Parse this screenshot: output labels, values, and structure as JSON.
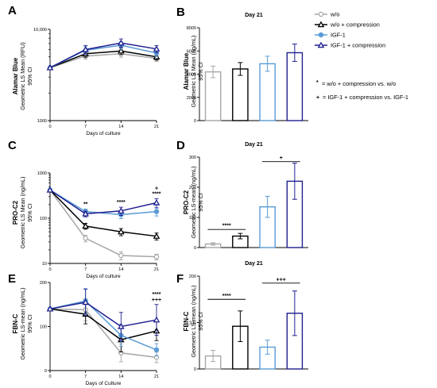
{
  "colors": {
    "wo": "#a6a6a6",
    "wo_compression": "#000000",
    "igf1": "#5b9bd5",
    "igf1_compression": "#1f1f8f"
  },
  "legend": {
    "items": [
      {
        "label": "w/o",
        "marker": "circle",
        "color": "#a6a6a6"
      },
      {
        "label": "w/o + compression",
        "marker": "triangle",
        "color": "#000000"
      },
      {
        "label": "IGF-1",
        "marker": "circle",
        "color": "#5b9bd5"
      },
      {
        "label": "IGF-1 + compression",
        "marker": "triangle",
        "color": "#1f1f8f"
      }
    ],
    "note1_symbol": "*",
    "note1_text": "= w/o + compression vs. w/o",
    "note2_symbol": "+",
    "note2_text": "= IGF-1 + compression vs. IGF-1"
  },
  "chart_data": [
    {
      "panel": "A",
      "type": "line",
      "ylabel": "Alamar Blue",
      "ylabel2": "Geometric LS Mean (RFU)",
      "ylabel3": "95% CI",
      "xlabel": "Days of culture",
      "yscale": "log",
      "ylim": [
        1000,
        10000
      ],
      "yticks": [
        1000,
        10000
      ],
      "ytick_labels": [
        "1000",
        "10,000"
      ],
      "x": [
        0,
        7,
        14,
        21
      ],
      "xticks": [
        0,
        7,
        14,
        21
      ],
      "series": [
        {
          "name": "w/o",
          "values": [
            3800,
            5100,
            5400,
            4800
          ],
          "err": [
            0,
            400,
            450,
            350
          ]
        },
        {
          "name": "w/o + compression",
          "values": [
            3800,
            5400,
            5800,
            5000
          ],
          "err": [
            0,
            450,
            500,
            400
          ]
        },
        {
          "name": "IGF-1",
          "values": [
            3800,
            5900,
            6700,
            5500
          ],
          "err": [
            0,
            550,
            650,
            450
          ]
        },
        {
          "name": "IGF-1 + compression",
          "values": [
            3800,
            6000,
            7100,
            6100
          ],
          "err": [
            0,
            650,
            750,
            550
          ]
        }
      ],
      "annotations": []
    },
    {
      "panel": "B",
      "type": "bar",
      "title": "Day 21",
      "ylabel": "Alamar Blue",
      "ylabel2": "Geometric LS Mean (ng/mL)",
      "ylabel3": "95% CI",
      "ylim": [
        0,
        8000
      ],
      "yticks": [
        0,
        2000,
        4000,
        6000,
        8000
      ],
      "ytick_labels": [
        "0",
        "2000",
        "4000",
        "6000",
        "8000"
      ],
      "categories": [
        "w/o",
        "w/o + compression",
        "IGF-1",
        "IGF-1 + compression"
      ],
      "values": [
        4200,
        4450,
        4900,
        5850
      ],
      "err": [
        500,
        550,
        650,
        750
      ],
      "annotations": []
    },
    {
      "panel": "C",
      "type": "line",
      "ylabel": "PRO-C2",
      "ylabel2": "Geometric LS Mean (ng/mL)",
      "ylabel3": "95% CI",
      "xlabel": "Days of culture",
      "yscale": "log",
      "ylim": [
        10,
        1000
      ],
      "yticks": [
        10,
        100,
        1000
      ],
      "ytick_labels": [
        "10",
        "100",
        "1000"
      ],
      "x": [
        0,
        7,
        14,
        21
      ],
      "xticks": [
        0,
        7,
        14,
        21
      ],
      "series": [
        {
          "name": "w/o",
          "values": [
            420,
            36,
            15,
            14
          ],
          "err": [
            0,
            6,
            3,
            2
          ]
        },
        {
          "name": "w/o + compression",
          "values": [
            420,
            67,
            50,
            40
          ],
          "err": [
            0,
            10,
            9,
            7
          ]
        },
        {
          "name": "IGF-1",
          "values": [
            420,
            140,
            120,
            140
          ],
          "err": [
            0,
            20,
            22,
            28
          ]
        },
        {
          "name": "IGF-1 + compression",
          "values": [
            420,
            125,
            145,
            220
          ],
          "err": [
            0,
            18,
            30,
            50
          ]
        }
      ],
      "annotations": [
        {
          "x": 7,
          "text": "**"
        },
        {
          "x": 14,
          "text": "****"
        },
        {
          "x": 21,
          "text": "****"
        },
        {
          "x": 21,
          "text": "+"
        }
      ]
    },
    {
      "panel": "D",
      "type": "bar",
      "title": "Day 21",
      "ylabel": "PRO-C2",
      "ylabel2": "Geometric LS-mean (ng/mL)",
      "ylabel3": "95% CI",
      "ylim": [
        0,
        300
      ],
      "yticks": [
        0,
        100,
        200,
        300
      ],
      "ytick_labels": [
        "0",
        "100",
        "200",
        "300"
      ],
      "categories": [
        "w/o",
        "w/o + compression",
        "IGF-1",
        "IGF-1 + compression"
      ],
      "values": [
        12,
        38,
        135,
        220
      ],
      "err": [
        4,
        9,
        35,
        60
      ],
      "annotations": [
        {
          "between": [
            0,
            1
          ],
          "level": 60,
          "text": "****"
        },
        {
          "between": [
            2,
            3
          ],
          "level": 285,
          "text": "+"
        }
      ]
    },
    {
      "panel": "E",
      "type": "line",
      "ylabel": "FBN-C",
      "ylabel2": "Geometric LS-mean (ng/mL)",
      "ylabel3": "95% CI",
      "xlabel": "Days of Culture",
      "yscale": "linear",
      "ylim": [
        0,
        200
      ],
      "yticks": [
        0,
        100,
        200
      ],
      "ytick_labels": [
        "0",
        "100",
        "200"
      ],
      "x": [
        0,
        7,
        14,
        21
      ],
      "xticks": [
        0,
        7,
        14,
        21
      ],
      "series": [
        {
          "name": "w/o",
          "values": [
            140,
            138,
            40,
            30
          ],
          "err": [
            0,
            25,
            20,
            12
          ]
        },
        {
          "name": "w/o + compression",
          "values": [
            140,
            128,
            70,
            90
          ],
          "err": [
            0,
            22,
            28,
            22
          ]
        },
        {
          "name": "IGF-1",
          "values": [
            140,
            158,
            80,
            47
          ],
          "err": [
            0,
            28,
            25,
            14
          ]
        },
        {
          "name": "IGF-1 + compression",
          "values": [
            140,
            155,
            100,
            115
          ],
          "err": [
            0,
            30,
            32,
            35
          ]
        }
      ],
      "annotations": [
        {
          "x": 21,
          "text": "+++"
        },
        {
          "x": 21,
          "text": "****"
        }
      ]
    },
    {
      "panel": "F",
      "type": "bar",
      "title": "Day 21",
      "ylabel": "FBN-C",
      "ylabel2": "Geometric LS-mean (ng/mL)",
      "ylabel3": "95% CI",
      "ylim": [
        0,
        200
      ],
      "yticks": [
        0,
        100,
        200
      ],
      "ytick_labels": [
        "0",
        "100",
        "200"
      ],
      "categories": [
        "w/o",
        "w/o + compression",
        "IGF-1",
        "IGF-1 + compression"
      ],
      "values": [
        28,
        92,
        47,
        120
      ],
      "err": [
        12,
        33,
        15,
        48
      ],
      "annotations": [
        {
          "between": [
            0,
            1
          ],
          "level": 150,
          "text": "****"
        },
        {
          "between": [
            2,
            3
          ],
          "level": 185,
          "text": "+++"
        }
      ]
    }
  ]
}
